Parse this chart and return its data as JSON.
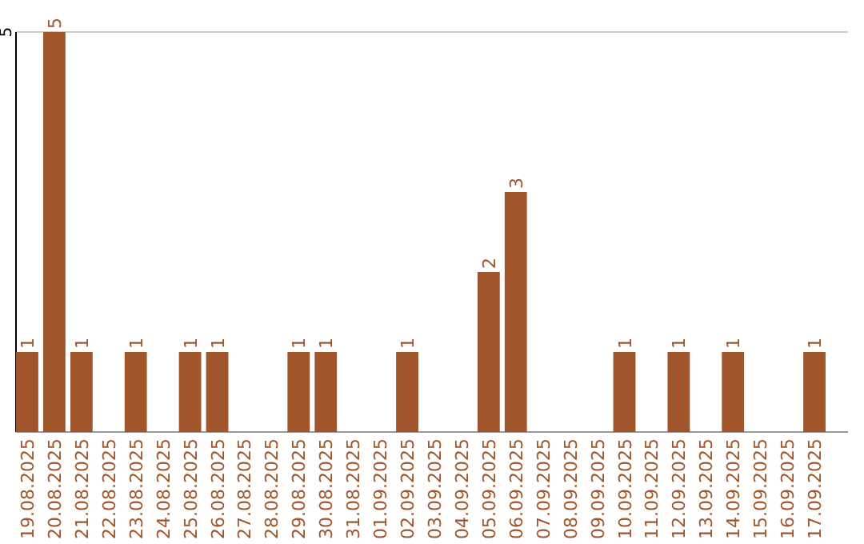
{
  "chart_data": {
    "type": "bar",
    "categories": [
      "19.08.2025",
      "20.08.2025",
      "21.08.2025",
      "22.08.2025",
      "23.08.2025",
      "24.08.2025",
      "25.08.2025",
      "26.08.2025",
      "27.08.2025",
      "28.08.2025",
      "29.08.2025",
      "30.08.2025",
      "31.08.2025",
      "01.09.2025",
      "02.09.2025",
      "03.09.2025",
      "04.09.2025",
      "05.09.2025",
      "06.09.2025",
      "07.09.2025",
      "08.09.2025",
      "09.09.2025",
      "10.09.2025",
      "11.09.2025",
      "12.09.2025",
      "13.09.2025",
      "14.09.2025",
      "15.09.2025",
      "16.09.2025",
      "17.09.2025"
    ],
    "values": [
      1,
      5,
      1,
      0,
      1,
      0,
      1,
      1,
      0,
      0,
      1,
      1,
      0,
      0,
      1,
      0,
      0,
      2,
      3,
      0,
      0,
      0,
      1,
      0,
      1,
      0,
      1,
      0,
      0,
      1
    ],
    "value_labels": [
      "1",
      "5",
      "1",
      null,
      "1",
      null,
      "1",
      "1",
      null,
      null,
      "1",
      "1",
      null,
      null,
      "1",
      null,
      null,
      "2",
      "3",
      null,
      null,
      null,
      "1",
      null,
      "1",
      null,
      "1",
      null,
      null,
      "1"
    ],
    "color": "#a0562a",
    "ylim": [
      0,
      5
    ],
    "yticks": [
      5
    ]
  }
}
